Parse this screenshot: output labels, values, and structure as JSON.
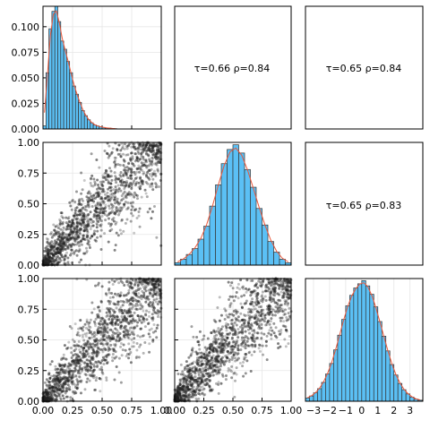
{
  "chart_data": {
    "type": "pairplot",
    "variables": 3,
    "colors": {
      "histogram_fill": "#5bc0f5",
      "histogram_edge": "#333333",
      "density_line": "#e8583c",
      "scatter_point": "#222222",
      "grid": "#e6e6e6"
    },
    "diagonal": [
      {
        "variable": 1,
        "ylim": [
          0,
          0.12
        ],
        "xlim": [
          0,
          1
        ],
        "y_ticks": [
          "0.000",
          "0.025",
          "0.050",
          "0.075",
          "0.100"
        ],
        "bin_width": 0.025,
        "histogram": [
          0.003,
          0.055,
          0.098,
          0.115,
          0.121,
          0.105,
          0.086,
          0.078,
          0.066,
          0.055,
          0.042,
          0.034,
          0.026,
          0.018,
          0.013,
          0.009,
          0.006,
          0.004,
          0.003,
          0.002,
          0.0015,
          0.001,
          0.0008,
          0.0005,
          0.0003
        ],
        "density_line": true
      },
      {
        "variable": 2,
        "xlim": [
          0,
          1
        ],
        "x_ticks": [
          "0.00",
          "0.25",
          "0.50",
          "0.75",
          "1.00"
        ],
        "bin_width": 0.05,
        "histogram": [
          0.002,
          0.005,
          0.009,
          0.014,
          0.022,
          0.033,
          0.05,
          0.068,
          0.086,
          0.098,
          0.102,
          0.095,
          0.081,
          0.066,
          0.048,
          0.034,
          0.02,
          0.011,
          0.005,
          0.002
        ],
        "density_line": true
      },
      {
        "variable": 3,
        "xlim": [
          -3.5,
          3.8
        ],
        "x_ticks": [
          "−3",
          "−2",
          "−1",
          "0",
          "1",
          "2",
          "3"
        ],
        "bin_width": 0.25,
        "histogram": [
          0.003,
          0.005,
          0.008,
          0.012,
          0.018,
          0.026,
          0.036,
          0.049,
          0.063,
          0.078,
          0.091,
          0.101,
          0.108,
          0.112,
          0.115,
          0.11,
          0.102,
          0.09,
          0.076,
          0.062,
          0.048,
          0.035,
          0.025,
          0.017,
          0.011,
          0.007,
          0.004,
          0.002,
          0.001
        ],
        "density_line": true
      }
    ],
    "upper": [
      {
        "row": 1,
        "col": 2,
        "tau": 0.66,
        "rho": 0.84,
        "text": "τ=0.66  ρ=0.84"
      },
      {
        "row": 1,
        "col": 3,
        "tau": 0.65,
        "rho": 0.84,
        "text": "τ=0.65  ρ=0.84"
      },
      {
        "row": 2,
        "col": 3,
        "tau": 0.65,
        "rho": 0.83,
        "text": "τ=0.65  ρ=0.83"
      }
    ],
    "lower": [
      {
        "row": 2,
        "col": 1,
        "xlim": [
          0,
          1
        ],
        "ylim": [
          0,
          1
        ],
        "y_ticks": [
          "0.00",
          "0.25",
          "0.50",
          "0.75",
          "1.00"
        ],
        "n_points": 1400
      },
      {
        "row": 3,
        "col": 1,
        "xlim": [
          0,
          1
        ],
        "ylim": [
          0,
          1
        ],
        "y_ticks": [
          "0.00",
          "0.25",
          "0.50",
          "0.75",
          "1.00"
        ],
        "x_ticks": [
          "0.00",
          "0.25",
          "0.50",
          "0.75",
          "1.00"
        ],
        "n_points": 1400
      },
      {
        "row": 3,
        "col": 2,
        "xlim": [
          0,
          1
        ],
        "ylim": [
          0,
          1
        ],
        "x_ticks": [
          "0.00",
          "0.25",
          "0.50",
          "0.75",
          "1.00"
        ],
        "n_points": 1400
      }
    ]
  }
}
